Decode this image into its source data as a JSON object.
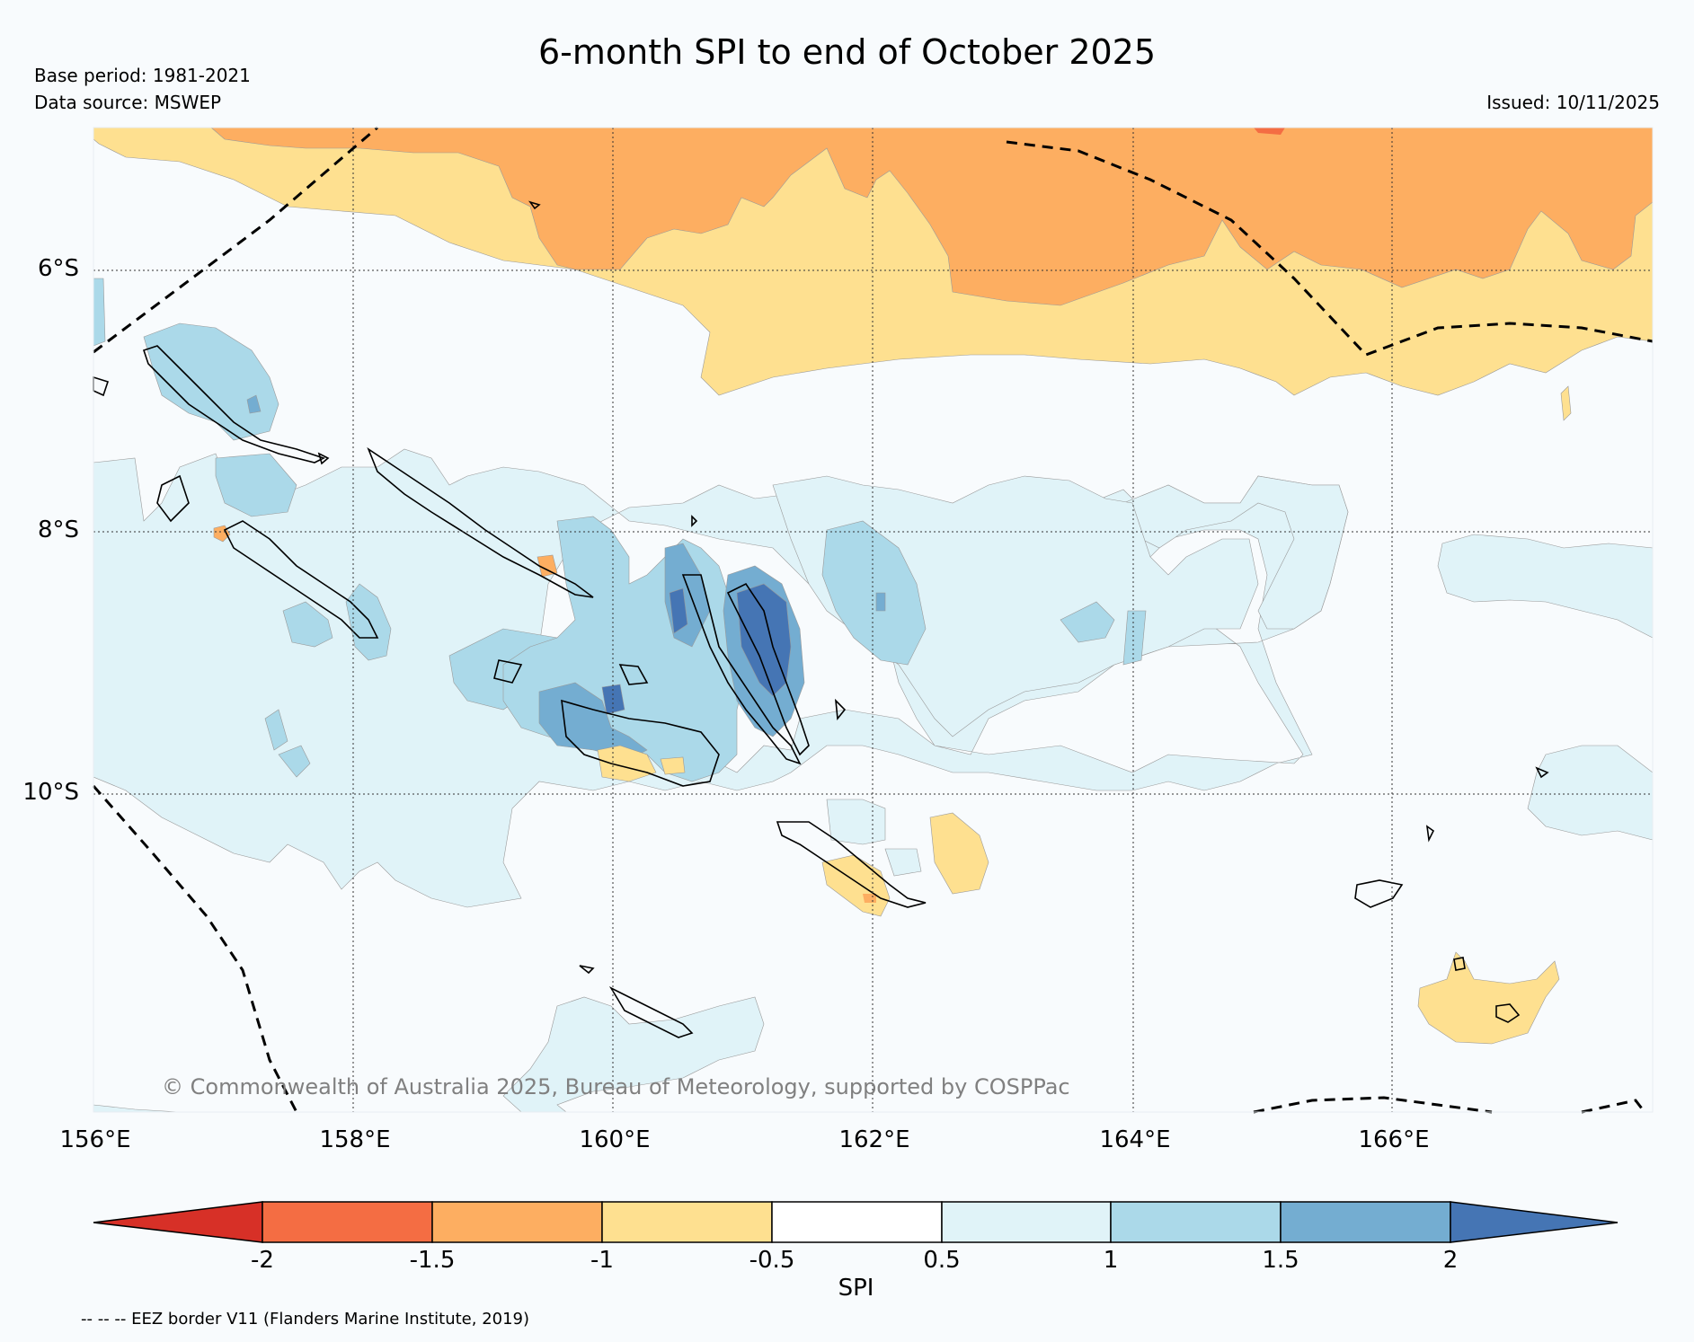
{
  "title": "6-month SPI to end of October 2025",
  "base_period": "Base period: 1981-2021",
  "data_source": "Data source: MSWEP",
  "issued": "Issued: 10/11/2025",
  "lat_labels": [
    "6°S",
    "8°S",
    "10°S"
  ],
  "lon_labels": [
    "156°E",
    "158°E",
    "160°E",
    "162°E",
    "164°E",
    "166°E"
  ],
  "credit": "© Commonwealth of Australia 2025, Bureau of Meteorology, supported by COSPPac",
  "colorbar": {
    "title": "SPI",
    "tick_labels": [
      "-2",
      "-1.5",
      "-1",
      "-0.5",
      "0.5",
      "1",
      "1.5",
      "2"
    ],
    "colors": [
      "#d73027",
      "#f46d43",
      "#fdae61",
      "#fee090",
      "#ffffff",
      "#e0f3f8",
      "#abd9e9",
      "#74add1",
      "#4575b4"
    ]
  },
  "legend_eez": "-- -- -- EEZ border V11 (Flanders Marine Institute, 2019)",
  "colors": {
    "dry_strong": "#fdae61",
    "dry_moderate": "#fee090",
    "dry_extreme": "#f46d43",
    "wet_mild": "#e0f3f8",
    "wet_moderate": "#abd9e9",
    "wet_strong": "#74add1",
    "wet_extreme": "#4575b4",
    "background": "#f8fbfd"
  }
}
